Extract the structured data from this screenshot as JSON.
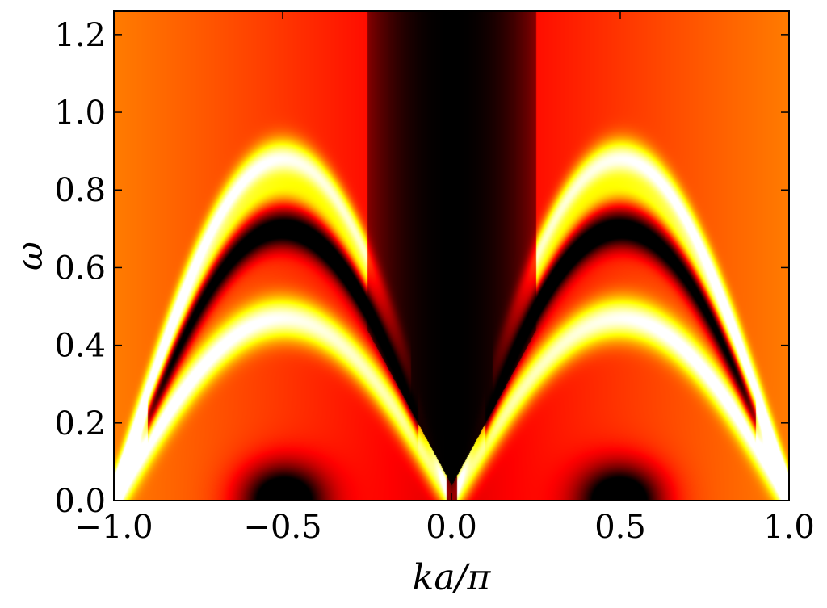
{
  "chart_data": {
    "type": "heatmap",
    "title": "",
    "xlabel": "ka/π",
    "ylabel": "ω",
    "xlim": [
      -1.0,
      1.0
    ],
    "ylim": [
      0.0,
      1.26
    ],
    "xticks": [
      -1.0,
      -0.5,
      0.0,
      0.5,
      1.0
    ],
    "xtick_labels": [
      "−1.0",
      "−0.5",
      "0.0",
      "0.5",
      "1.0"
    ],
    "yticks": [
      0.0,
      0.2,
      0.4,
      0.6,
      0.8,
      1.0,
      1.2
    ],
    "ytick_labels": [
      "0.0",
      "0.2",
      "0.4",
      "0.6",
      "0.8",
      "1.0",
      "1.2"
    ],
    "colormap": "hot",
    "bands": [
      {
        "name": "",
        "center_omega": 0.5,
        "peak_k": 0.5,
        "low_end_k": 0.06,
        "weight": 1.0
      },
      {
        "name": "",
        "center_omega": 0.8,
        "peak_k": 0.5,
        "low_end_k": 0.12,
        "weight": 0.85
      }
    ],
    "background_intensity": 0.55,
    "gap_region": {
      "k_range": [
        -0.25,
        0.25
      ],
      "omega_min": 0.45
    }
  }
}
